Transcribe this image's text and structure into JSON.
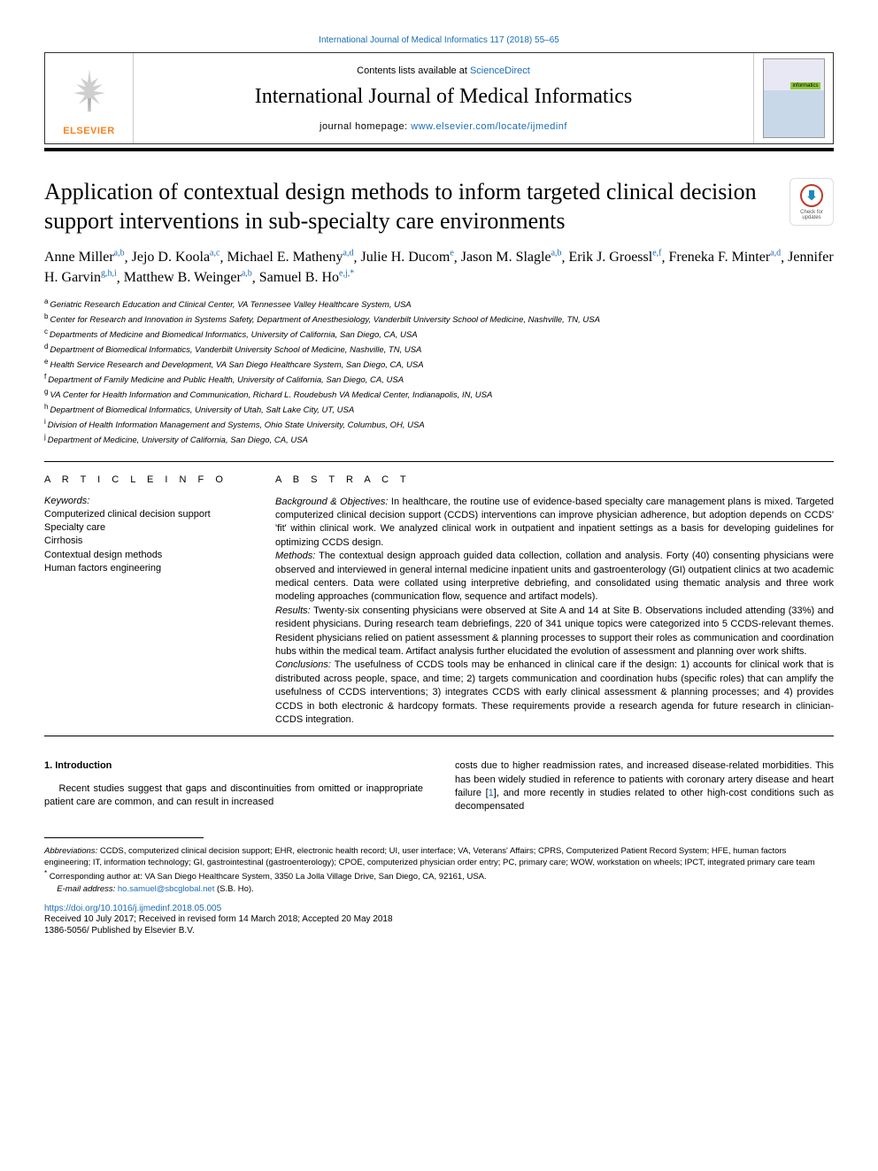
{
  "topLink": {
    "prefix": "",
    "text": "International Journal of Medical Informatics 117 (2018) 55–65"
  },
  "headerBox": {
    "contentsPrefix": "Contents lists available at ",
    "contentsLink": "ScienceDirect",
    "journalName": "International Journal of Medical Informatics",
    "homepagePrefix": "journal homepage: ",
    "homepageLink": "www.elsevier.com/locate/ijmedinf",
    "elsevierText": "ELSEVIER",
    "informaticsBadge": "informatics"
  },
  "checkUpdates": {
    "line1": "Check for",
    "line2": "updates"
  },
  "title": "Application of contextual design methods to inform targeted clinical decision support interventions in sub-specialty care environments",
  "authors": [
    {
      "name": "Anne Miller",
      "sup": "a,b"
    },
    {
      "name": "Jejo D. Koola",
      "sup": "a,c"
    },
    {
      "name": "Michael E. Matheny",
      "sup": "a,d"
    },
    {
      "name": "Julie H. Ducom",
      "sup": "e"
    },
    {
      "name": "Jason M. Slagle",
      "sup": "a,b"
    },
    {
      "name": "Erik J. Groessl",
      "sup": "e,f"
    },
    {
      "name": "Freneka F. Minter",
      "sup": "a,d"
    },
    {
      "name": "Jennifer H. Garvin",
      "sup": "g,h,i"
    },
    {
      "name": "Matthew B. Weinger",
      "sup": "a,b"
    },
    {
      "name": "Samuel B. Ho",
      "sup": "e,j,*",
      "corr": true
    }
  ],
  "affiliations": [
    {
      "key": "a",
      "text": "Geriatric Research Education and Clinical Center, VA Tennessee Valley Healthcare System, USA"
    },
    {
      "key": "b",
      "text": "Center for Research and Innovation in Systems Safety, Department of Anesthesiology, Vanderbilt University School of Medicine, Nashville, TN, USA"
    },
    {
      "key": "c",
      "text": "Departments of Medicine and Biomedical Informatics, University of California, San Diego, CA, USA"
    },
    {
      "key": "d",
      "text": "Department of Biomedical Informatics, Vanderbilt University School of Medicine, Nashville, TN, USA"
    },
    {
      "key": "e",
      "text": "Health Service Research and Development, VA San Diego Healthcare System, San Diego, CA, USA"
    },
    {
      "key": "f",
      "text": "Department of Family Medicine and Public Health, University of California, San Diego, CA, USA"
    },
    {
      "key": "g",
      "text": "VA Center for Health Information and Communication, Richard L. Roudebush VA Medical Center, Indianapolis, IN, USA"
    },
    {
      "key": "h",
      "text": "Department of Biomedical Informatics, University of Utah, Salt Lake City, UT, USA"
    },
    {
      "key": "i",
      "text": "Division of Health Information Management and Systems, Ohio State University, Columbus, OH, USA"
    },
    {
      "key": "j",
      "text": "Department of Medicine, University of California, San Diego, CA, USA"
    }
  ],
  "articleInfo": {
    "heading": "A R T I C L E  I N F O",
    "keywordsLabel": "Keywords:",
    "keywords": [
      "Computerized clinical decision support",
      "Specialty care",
      "Cirrhosis",
      "Contextual design methods",
      "Human factors engineering"
    ]
  },
  "abstract": {
    "heading": "A B S T R A C T",
    "sections": [
      {
        "label": "Background & Objectives:",
        "text": " In healthcare, the routine use of evidence-based specialty care management plans is mixed. Targeted computerized clinical decision support (CCDS) interventions can improve physician adherence, but adoption depends on CCDS' 'fit' within clinical work. We analyzed clinical work in outpatient and inpatient settings as a basis for developing guidelines for optimizing CCDS design."
      },
      {
        "label": "Methods:",
        "text": " The contextual design approach guided data collection, collation and analysis. Forty (40) consenting physicians were observed and interviewed in general internal medicine inpatient units and gastroenterology (GI) outpatient clinics at two academic medical centers. Data were collated using interpretive debriefing, and consolidated using thematic analysis and three work modeling approaches (communication flow, sequence and artifact models)."
      },
      {
        "label": "Results:",
        "text": " Twenty-six consenting physicians were observed at Site A and 14 at Site B. Observations included attending (33%) and resident physicians. During research team debriefings, 220 of 341 unique topics were categorized into 5 CCDS-relevant themes. Resident physicians relied on patient assessment & planning processes to support their roles as communication and coordination hubs within the medical team. Artifact analysis further elucidated the evolution of assessment and planning over work shifts."
      },
      {
        "label": "Conclusions:",
        "text": " The usefulness of CCDS tools may be enhanced in clinical care if the design: 1) accounts for clinical work that is distributed across people, space, and time; 2) targets communication and coordination hubs (specific roles) that can amplify the usefulness of CCDS interventions; 3) integrates CCDS with early clinical assessment & planning processes; and 4) provides CCDS in both electronic & hardcopy formats. These requirements provide a research agenda for future research in clinician-CCDS integration."
      }
    ]
  },
  "body": {
    "introHeading": "1.  Introduction",
    "leftPara": "Recent studies suggest that gaps and discontinuities from omitted or inappropriate patient care are common, and can result in increased",
    "rightParaBeforeRef": "costs due to higher readmission rates, and increased disease-related morbidities. This has been widely studied in reference to patients with coronary artery disease and heart failure [",
    "ref1": "1",
    "rightParaAfterRef": "], and more recently in studies related to other high-cost conditions such as decompensated"
  },
  "footnotes": {
    "abbrevLabel": "Abbreviations:",
    "abbrev": " CCDS, computerized clinical decision support; EHR, electronic health record; UI, user interface; VA, Veterans' Affairs; CPRS, Computerized Patient Record System; HFE, human factors engineering; IT, information technology; GI, gastrointestinal (gastroenterology); CPOE, computerized physician order entry; PC, primary care; WOW, workstation on wheels; IPCT, integrated primary care team",
    "corrMark": "*",
    "corr": " Corresponding author at: VA San Diego Healthcare System, 3350 La Jolla Village Drive, San Diego, CA, 92161, USA.",
    "emailLabel": "E-mail address:",
    "email": " ho.samuel@sbcglobal.net",
    "emailPerson": " (S.B. Ho).",
    "doi": "https://doi.org/10.1016/j.ijmedinf.2018.05.005",
    "received": "Received 10 July 2017; Received in revised form 14 March 2018; Accepted 20 May 2018",
    "issn": "1386-5056/ Published by Elsevier B.V."
  },
  "colors": {
    "link": "#1a6cb5",
    "elsevierOrange": "#f58220",
    "text": "#000000",
    "background": "#ffffff"
  },
  "typography": {
    "bodyFontPt": 11,
    "titleFontPt": 26,
    "journalFontPt": 24,
    "authorFontPt": 16,
    "affilFontPt": 9.5,
    "footnoteFontPt": 9.5
  }
}
